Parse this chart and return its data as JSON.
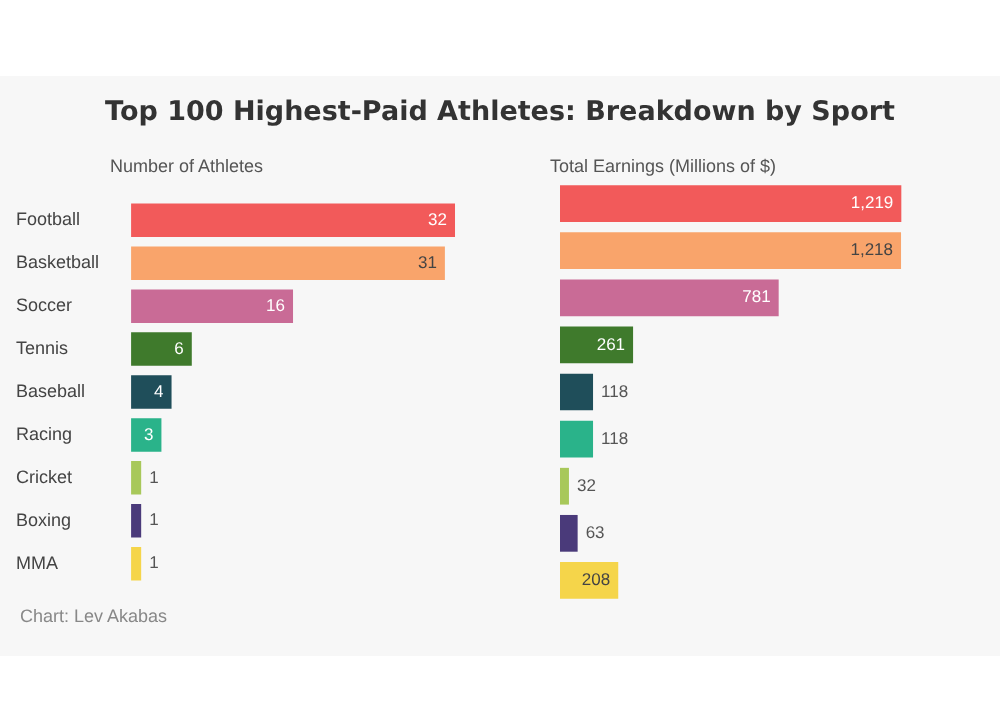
{
  "chart_data": [
    {
      "type": "bar",
      "orientation": "horizontal",
      "title": "Top 100 Highest-Paid Athletes: Breakdown by Sport",
      "subtitle": "Number of Athletes",
      "categories": [
        "Football",
        "Basketball",
        "Soccer",
        "Tennis",
        "Baseball",
        "Racing",
        "Cricket",
        "Boxing",
        "MMA"
      ],
      "values": [
        32,
        31,
        16,
        6,
        4,
        3,
        1,
        1,
        1
      ],
      "colors": [
        "#f25a5a",
        "#f9a46b",
        "#c96b96",
        "#3f7a2c",
        "#1f4e5a",
        "#2ab38a",
        "#a8c85a",
        "#4a3a7a",
        "#f5d54a"
      ],
      "data_labels": true,
      "tick_labels": "y",
      "annotations": [
        "Chart: Lev Akabas"
      ]
    },
    {
      "type": "bar",
      "orientation": "horizontal",
      "subtitle": "Total Earnings (Millions of $)",
      "categories": [
        null,
        null,
        null,
        null,
        null,
        null,
        null,
        null,
        null
      ],
      "values": [
        1219,
        1218,
        781,
        261,
        118,
        118,
        32,
        63,
        208
      ],
      "value_labels": [
        "1,219",
        "1,218",
        "781",
        "261",
        "118",
        "118",
        "32",
        "63",
        "208"
      ],
      "colors": [
        "#f25a5a",
        "#f9a46b",
        "#c96b96",
        "#3f7a2c",
        "#1f4e5a",
        "#2ab38a",
        "#a8c85a",
        "#4a3a7a",
        "#f5d54a"
      ],
      "tick_labels": false
    }
  ]
}
